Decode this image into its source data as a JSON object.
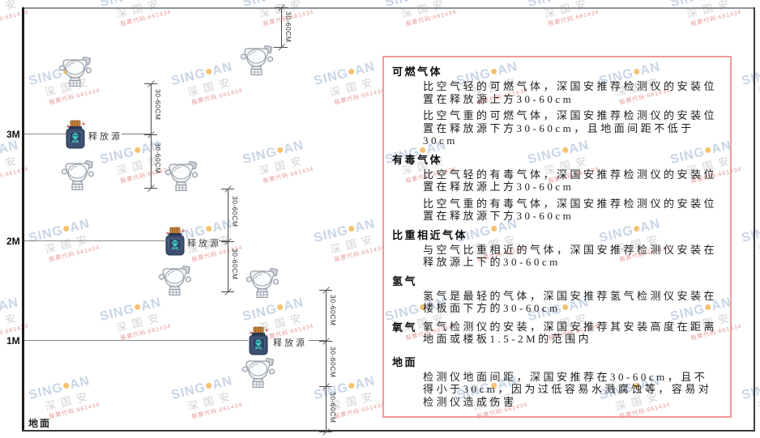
{
  "watermark": {
    "brand_prefix": "SING",
    "brand_suffix": "AN",
    "company": "深国安",
    "stock_code": "股票代码:661434"
  },
  "diagram": {
    "dim_label": "30-60CM",
    "source_label": "释放源",
    "height_labels": [
      "3M",
      "2M",
      "1M"
    ],
    "ground_label": "地面"
  },
  "panel": {
    "sections": [
      {
        "heading": "可燃气体",
        "paragraphs": [
          "比空气轻的可燃气体，深国安推荐检测仪的安装位置在释放源上方30-60cm",
          "比空气重的可燃气体，深国安推荐检测仪的安装位置在释放源下方30-60cm，且地面间距不低于30cm"
        ]
      },
      {
        "heading": "有毒气体",
        "paragraphs": [
          "比空气轻的有毒气体，深国安推荐检测仪的安装位置在释放源上方30-60cm",
          "比空气重的有毒气体，深国安推荐检测仪的安装位置在释放源下方30-60cm"
        ]
      },
      {
        "heading": "比重相近气体",
        "paragraphs": [
          "与空气比重相近的气体，深国安推荐检测仪安装在释放源上下的30-60cm"
        ]
      },
      {
        "heading": "氢气",
        "paragraphs": [
          "氢气是最轻的气体，深国安推荐氢气检测仪安装在楼板面下方的30-60cm"
        ]
      },
      {
        "heading": "氧气",
        "inline": true,
        "paragraphs": [
          "氧气检测仪的安装，深国安推荐其安装高度在距离地面或楼板1.5-2M的范围内"
        ]
      },
      {
        "heading": "地面",
        "paragraphs": [
          "检测仪地面间距，深国安推荐在30-60cm，且不得小于30cm，因为过低容易水溅腐蚀等，容易对检测仪造成伤害"
        ]
      }
    ]
  },
  "colors": {
    "panel_border": "#ef9a9a",
    "watermark_blue": "#a3b9d5",
    "watermark_orange": "#f3a630",
    "source_body": "#3d4f70",
    "source_cap": "#c8823c",
    "skull_teal": "#3ec6c6"
  }
}
